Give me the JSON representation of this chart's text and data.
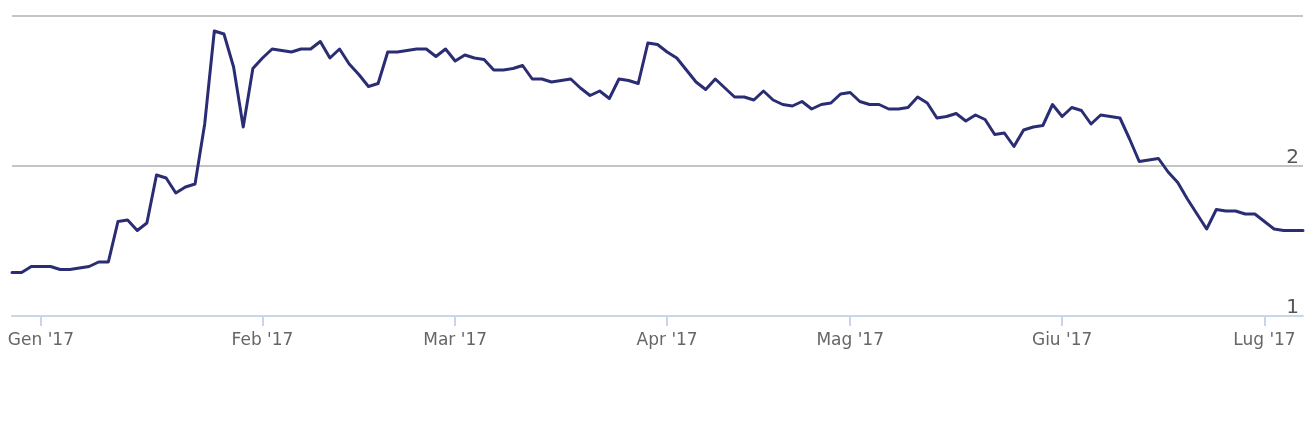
{
  "chart_data": {
    "type": "line",
    "categories": [
      null,
      null,
      null,
      "Gen '17",
      null,
      null,
      null,
      null,
      null,
      null,
      null,
      null,
      null,
      null,
      null,
      null,
      null,
      null,
      null,
      null,
      null,
      null,
      null,
      null,
      null,
      null,
      "Feb '17",
      null,
      null,
      null,
      null,
      null,
      null,
      null,
      null,
      null,
      null,
      null,
      null,
      null,
      null,
      null,
      null,
      null,
      null,
      null,
      "Mar '17",
      null,
      null,
      null,
      null,
      null,
      null,
      null,
      null,
      null,
      null,
      null,
      null,
      null,
      null,
      null,
      null,
      null,
      null,
      null,
      null,
      null,
      "Apr '17",
      null,
      null,
      null,
      null,
      null,
      null,
      null,
      null,
      null,
      null,
      null,
      null,
      null,
      null,
      null,
      null,
      null,
      null,
      "Mag '17",
      null,
      null,
      null,
      null,
      null,
      null,
      null,
      null,
      null,
      null,
      null,
      null,
      null,
      null,
      null,
      null,
      null,
      null,
      null,
      null,
      null,
      "Giu '17",
      null,
      null,
      null,
      null,
      null,
      null,
      null,
      null,
      null,
      null,
      null,
      null,
      null,
      null,
      null,
      null,
      null,
      null,
      null,
      null,
      "Lug '17",
      null,
      null,
      null,
      null
    ],
    "series": [
      {
        "color": "#2b2d74",
        "values": [
          1.29,
          1.29,
          1.33,
          1.33,
          1.33,
          1.31,
          1.31,
          1.32,
          1.33,
          1.36,
          1.36,
          1.63,
          1.64,
          1.57,
          1.62,
          1.94,
          1.92,
          1.82,
          1.86,
          1.88,
          2.28,
          2.9,
          2.88,
          2.66,
          2.26,
          2.65,
          2.72,
          2.78,
          2.77,
          2.76,
          2.78,
          2.78,
          2.83,
          2.72,
          2.78,
          2.68,
          2.61,
          2.53,
          2.55,
          2.76,
          2.76,
          2.77,
          2.78,
          2.78,
          2.73,
          2.78,
          2.7,
          2.74,
          2.72,
          2.71,
          2.64,
          2.64,
          2.65,
          2.67,
          2.58,
          2.58,
          2.56,
          2.57,
          2.58,
          2.52,
          2.47,
          2.5,
          2.45,
          2.58,
          2.57,
          2.55,
          2.82,
          2.81,
          2.76,
          2.72,
          2.64,
          2.56,
          2.51,
          2.58,
          2.52,
          2.46,
          2.46,
          2.44,
          2.5,
          2.44,
          2.41,
          2.4,
          2.43,
          2.38,
          2.41,
          2.42,
          2.48,
          2.49,
          2.43,
          2.41,
          2.41,
          2.38,
          2.38,
          2.39,
          2.46,
          2.42,
          2.32,
          2.33,
          2.35,
          2.3,
          2.34,
          2.31,
          2.21,
          2.22,
          2.13,
          2.24,
          2.26,
          2.27,
          2.41,
          2.33,
          2.39,
          2.37,
          2.28,
          2.34,
          2.33,
          2.32,
          2.18,
          2.03,
          2.04,
          2.05,
          1.96,
          1.89,
          1.78,
          1.68,
          1.58,
          1.71,
          1.7,
          1.7,
          1.68,
          1.68,
          1.63,
          1.58,
          1.57,
          1.57,
          1.57
        ]
      }
    ],
    "ylim": [
      1,
      3
    ],
    "yticks": [
      1,
      2,
      {
        "value": 3,
        "label": null
      }
    ],
    "grid": "y",
    "marker": "none"
  }
}
